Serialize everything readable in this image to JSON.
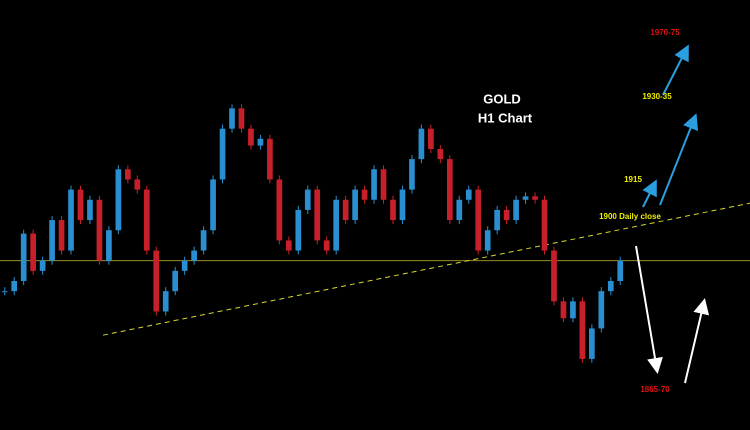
{
  "chart_data": {
    "type": "candlestick",
    "title": "GOLD",
    "subtitle": "H1 Chart",
    "values": [
      1894,
      1897,
      1911,
      1900,
      1903,
      1915,
      1906,
      1924,
      1915,
      1921,
      1903,
      1912,
      1930,
      1927,
      1924,
      1906,
      1888,
      1894,
      1900,
      1903,
      1906,
      1912,
      1927,
      1942,
      1948,
      1942,
      1937,
      1939,
      1927,
      1909,
      1906,
      1918,
      1924,
      1909,
      1906,
      1921,
      1915,
      1924,
      1921,
      1930,
      1921,
      1915,
      1924,
      1933,
      1942,
      1936,
      1933,
      1915,
      1921,
      1924,
      1906,
      1912,
      1918,
      1915,
      1921,
      1922,
      1921,
      1906,
      1891,
      1886,
      1891,
      1874,
      1883,
      1894,
      1897,
      1903
    ],
    "up_color": "#2a8fd0",
    "down_color": "#c8202a",
    "ylim": [
      1853,
      1980
    ],
    "horizontal_level": 1903,
    "trendline": [
      1881,
      1920
    ],
    "annotations": [
      {
        "text": "1970-75",
        "color": "#e01010"
      },
      {
        "text": "1930-35",
        "color": "#f0f000"
      },
      {
        "text": "1915",
        "color": "#f0f000"
      },
      {
        "text": "1900 Daily close",
        "color": "#f0f000"
      },
      {
        "text": "1865-70",
        "color": "#e01010"
      }
    ]
  }
}
